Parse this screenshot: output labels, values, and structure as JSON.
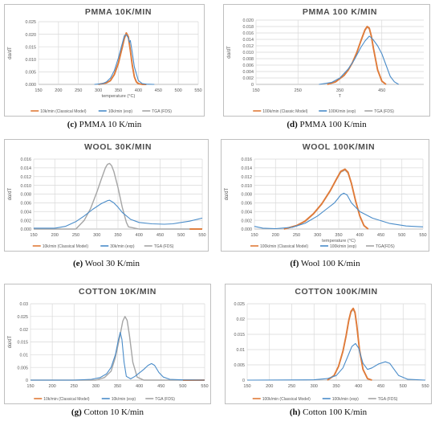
{
  "colors": {
    "model": "#e07b39",
    "exp": "#4a8cc9",
    "tga": "#a5a5a5",
    "grid": "#d9d9d9",
    "text": "#595959",
    "title": "#4d4d4d"
  },
  "chart_data": [
    {
      "id": "c",
      "type": "line",
      "title": "PMMA 10K/MIN",
      "xlabel": "temperature (°C)",
      "ylabel": "dα/dT",
      "xlim": [
        150,
        550
      ],
      "ylim": [
        0,
        0.025
      ],
      "xticks": [
        150,
        200,
        250,
        300,
        350,
        400,
        450,
        500,
        550
      ],
      "xticklabels": [
        "150",
        "200",
        "250",
        "300",
        "350",
        "400",
        "450",
        "500",
        "550"
      ],
      "yticks": [
        0,
        0.005,
        0.01,
        0.015,
        0.02,
        0.025
      ],
      "yticklabels": [
        "0.000",
        "0.005",
        "0.010",
        "0.015",
        "0.020",
        "0.025"
      ],
      "legend": "bottom",
      "caption": {
        "letter": "(c)",
        "text": " PMMA 10 K/min"
      },
      "series": [
        {
          "name": "10k/min (Classical Model)",
          "color": "model",
          "x": [
            300,
            320,
            330,
            340,
            350,
            360,
            365,
            370,
            375,
            380,
            385,
            390,
            395,
            400,
            410,
            420
          ],
          "y": [
            0,
            0.0006,
            0.0015,
            0.004,
            0.0085,
            0.015,
            0.0185,
            0.0205,
            0.019,
            0.0135,
            0.0075,
            0.003,
            0.001,
            0.0003,
            0,
            0
          ]
        },
        {
          "name": "10k/min (exp)",
          "color": "exp",
          "x": [
            290,
            310,
            320,
            330,
            340,
            350,
            360,
            365,
            370,
            375,
            378,
            380,
            385,
            390,
            400,
            410,
            420,
            440
          ],
          "y": [
            0,
            0.0003,
            0.001,
            0.0025,
            0.0055,
            0.0105,
            0.0165,
            0.0195,
            0.0198,
            0.0185,
            0.0168,
            0.0175,
            0.0125,
            0.007,
            0.0015,
            0.0003,
            0.0001,
            0
          ]
        },
        {
          "name": "TGA (FDS)",
          "color": "tga",
          "x": [
            300,
            320,
            330,
            340,
            350,
            360,
            365,
            370,
            375,
            380,
            385,
            390,
            395,
            400,
            410,
            420
          ],
          "y": [
            0,
            0.0005,
            0.0014,
            0.0038,
            0.0082,
            0.0148,
            0.0182,
            0.0202,
            0.0188,
            0.0135,
            0.0075,
            0.003,
            0.001,
            0.0003,
            0,
            0
          ]
        }
      ]
    },
    {
      "id": "d",
      "type": "line",
      "title": "PMMA 100 K/MIN",
      "xlabel": "T",
      "ylabel": "dα/dT",
      "xlim": [
        150,
        550
      ],
      "ylim": [
        0,
        0.02
      ],
      "xticks": [
        150,
        250,
        350,
        450
      ],
      "xticklabels": [
        "150",
        "250",
        "350",
        "450"
      ],
      "yticks": [
        0,
        0.002,
        0.004,
        0.006,
        0.008,
        0.01,
        0.012,
        0.014,
        0.016,
        0.018,
        0.02
      ],
      "yticklabels": [
        "0",
        "0.002",
        "0.004",
        "0.006",
        "0.008",
        "0.010",
        "0.012",
        "0.014",
        "0.016",
        "0.018",
        "0.020"
      ],
      "legend": "bottom",
      "caption": {
        "letter": "(d)",
        "text": " PMMA 100 K/min"
      },
      "series": [
        {
          "name": "100k/min (Classic Model)",
          "color": "model",
          "x": [
            320,
            340,
            360,
            370,
            380,
            390,
            400,
            410,
            415,
            420,
            425,
            430,
            440,
            450,
            460
          ],
          "y": [
            0,
            0.0008,
            0.0028,
            0.0045,
            0.0068,
            0.0098,
            0.0135,
            0.017,
            0.018,
            0.0175,
            0.015,
            0.0112,
            0.0045,
            0.001,
            0
          ]
        },
        {
          "name": "100K/min (exp)",
          "color": "exp",
          "x": [
            300,
            330,
            350,
            370,
            385,
            400,
            410,
            420,
            425,
            430,
            440,
            450,
            460,
            470,
            480,
            490
          ],
          "y": [
            0,
            0.0006,
            0.002,
            0.0048,
            0.0078,
            0.0115,
            0.0135,
            0.015,
            0.0145,
            0.0138,
            0.012,
            0.0095,
            0.006,
            0.0025,
            0.0008,
            0
          ]
        },
        {
          "name": "TGA (FDS)",
          "color": "tga",
          "x": [
            320,
            340,
            360,
            370,
            380,
            390,
            400,
            410,
            415,
            420,
            425,
            430,
            440,
            450,
            460
          ],
          "y": [
            0,
            0.0008,
            0.0027,
            0.0044,
            0.0067,
            0.0097,
            0.0134,
            0.0168,
            0.0178,
            0.0173,
            0.0149,
            0.0111,
            0.0045,
            0.001,
            0
          ]
        }
      ]
    },
    {
      "id": "e",
      "type": "line",
      "title": "WOOL 30K/MIN",
      "xlabel": "",
      "ylabel": "dα/dT",
      "xlim": [
        150,
        550
      ],
      "ylim": [
        0,
        0.016
      ],
      "xticks": [
        150,
        200,
        250,
        300,
        350,
        400,
        450,
        500,
        550
      ],
      "xticklabels": [
        "150",
        "200",
        "250",
        "300",
        "350",
        "400",
        "450",
        "500",
        "550"
      ],
      "yticks": [
        0,
        0.002,
        0.004,
        0.006,
        0.008,
        0.01,
        0.012,
        0.014,
        0.016
      ],
      "yticklabels": [
        "0.000",
        "0.002",
        "0.004",
        "0.006",
        "0.008",
        "0.010",
        "0.012",
        "0.014",
        "0.016"
      ],
      "legend": "bottom",
      "caption": {
        "letter": "(e)",
        "text": " Wool 30 K/min"
      },
      "series": [
        {
          "name": "10k/min (Classical Model)",
          "color": "model",
          "x": [
            520,
            550
          ],
          "y": [
            0,
            0
          ]
        },
        {
          "name": "30k/min (exp)",
          "color": "exp",
          "x": [
            150,
            200,
            225,
            250,
            270,
            290,
            310,
            325,
            330,
            340,
            350,
            360,
            380,
            400,
            430,
            460,
            480,
            500,
            520,
            550
          ],
          "y": [
            0.0002,
            0.0002,
            0.0006,
            0.0017,
            0.003,
            0.0045,
            0.0058,
            0.0065,
            0.0066,
            0.006,
            0.005,
            0.0038,
            0.0022,
            0.0015,
            0.0012,
            0.0011,
            0.0012,
            0.0015,
            0.0018,
            0.0025
          ]
        },
        {
          "name": "TGA (FDS)",
          "color": "tga",
          "x": [
            150,
            250,
            270,
            285,
            300,
            310,
            320,
            325,
            330,
            335,
            340,
            350,
            360,
            370,
            375,
            400,
            550
          ],
          "y": [
            0,
            0,
            0.002,
            0.0047,
            0.0085,
            0.0113,
            0.014,
            0.0148,
            0.015,
            0.0145,
            0.0132,
            0.0095,
            0.005,
            0.0015,
            0.0005,
            0,
            0
          ]
        }
      ]
    },
    {
      "id": "f",
      "type": "line",
      "title": "WOOL 100K/MIN",
      "xlabel": "temperature (°C)",
      "ylabel": "dα/dT",
      "xlim": [
        150,
        550
      ],
      "ylim": [
        0,
        0.016
      ],
      "xticks": [
        150,
        200,
        250,
        300,
        350,
        400,
        450,
        500,
        550
      ],
      "xticklabels": [
        "150",
        "200",
        "250",
        "300",
        "350",
        "400",
        "450",
        "500",
        "550"
      ],
      "yticks": [
        0,
        0.002,
        0.004,
        0.006,
        0.008,
        0.01,
        0.012,
        0.014,
        0.016
      ],
      "yticklabels": [
        "0.000",
        "0.002",
        "0.004",
        "0.006",
        "0.008",
        "0.010",
        "0.012",
        "0.014",
        "0.016"
      ],
      "legend": "bottom",
      "caption": {
        "letter": "(f)",
        "text": " Wool 100 K/min"
      },
      "series": [
        {
          "name": "100k/min (Classical Model)",
          "color": "model",
          "x": [
            220,
            250,
            270,
            290,
            310,
            330,
            345,
            355,
            365,
            372,
            380,
            390,
            400,
            410,
            420
          ],
          "y": [
            0,
            0.0008,
            0.0018,
            0.0035,
            0.0058,
            0.0088,
            0.0115,
            0.0132,
            0.0137,
            0.013,
            0.0105,
            0.0065,
            0.003,
            0.0008,
            0
          ]
        },
        {
          "name": "100k/min (exp)",
          "color": "exp",
          "x": [
            150,
            170,
            200,
            240,
            270,
            300,
            320,
            340,
            355,
            362,
            370,
            380,
            400,
            430,
            470,
            510,
            550
          ],
          "y": [
            0.0006,
            0.0002,
            0.0001,
            0.0004,
            0.0013,
            0.003,
            0.0045,
            0.006,
            0.0078,
            0.0082,
            0.0078,
            0.006,
            0.004,
            0.0025,
            0.0013,
            0.0007,
            0.0005
          ]
        },
        {
          "name": "TGA(FDS)",
          "color": "tga",
          "x": [
            220,
            250,
            270,
            290,
            310,
            330,
            345,
            355,
            365,
            372,
            380,
            390,
            400,
            410,
            420
          ],
          "y": [
            0,
            0.0007,
            0.0017,
            0.0034,
            0.0057,
            0.0087,
            0.0114,
            0.013,
            0.0135,
            0.0128,
            0.0104,
            0.0064,
            0.003,
            0.0008,
            0
          ]
        }
      ]
    },
    {
      "id": "g",
      "type": "line",
      "title": "COTTON 10K/MIN",
      "xlabel": "",
      "ylabel": "dα/dT",
      "xlim": [
        150,
        550
      ],
      "ylim": [
        0,
        0.03
      ],
      "xticks": [
        150,
        200,
        250,
        300,
        350,
        400,
        450,
        500,
        550
      ],
      "xticklabels": [
        "150",
        "200",
        "250",
        "300",
        "350",
        "400",
        "450",
        "500",
        "550"
      ],
      "yticks": [
        0,
        0.005,
        0.01,
        0.015,
        0.02,
        0.025,
        0.03
      ],
      "yticklabels": [
        "0",
        "0.005",
        "0.01",
        "0.015",
        "0.02",
        "0.025",
        "0.03"
      ],
      "legend": "bottom",
      "caption": {
        "letter": "(g)",
        "text": " Cotton 10 K/min"
      },
      "series": [
        {
          "name": "10k/min (Classical Model)",
          "color": "model",
          "x": [
            500,
            550
          ],
          "y": [
            0,
            0
          ]
        },
        {
          "name": "10k/min (exp)",
          "color": "exp",
          "x": [
            150,
            250,
            290,
            310,
            325,
            335,
            345,
            352,
            356,
            360,
            365,
            370,
            380,
            390,
            400,
            410,
            420,
            428,
            435,
            445,
            455,
            470,
            500,
            550
          ],
          "y": [
            0,
            0,
            0.0003,
            0.001,
            0.0025,
            0.005,
            0.01,
            0.016,
            0.0188,
            0.016,
            0.007,
            0.0015,
            0.0005,
            0.0015,
            0.0028,
            0.0042,
            0.0058,
            0.0065,
            0.0058,
            0.003,
            0.0012,
            0.0003,
            0.0001,
            0
          ]
        },
        {
          "name": "TGA (FDS)",
          "color": "tga",
          "x": [
            150,
            300,
            320,
            335,
            345,
            355,
            362,
            367,
            372,
            377,
            385,
            395,
            410,
            550
          ],
          "y": [
            0,
            0,
            0.001,
            0.0035,
            0.009,
            0.017,
            0.0232,
            0.025,
            0.0235,
            0.018,
            0.007,
            0.0012,
            0,
            0
          ]
        }
      ]
    },
    {
      "id": "h",
      "type": "line",
      "title": "COTTON 100K/MIN",
      "xlabel": "",
      "ylabel": "",
      "xlim": [
        150,
        550
      ],
      "ylim": [
        0,
        0.025
      ],
      "xticks": [
        150,
        200,
        250,
        300,
        350,
        400,
        450,
        500,
        550
      ],
      "xticklabels": [
        "150",
        "200",
        "250",
        "300",
        "350",
        "400",
        "450",
        "500",
        "550"
      ],
      "yticks": [
        0,
        0.005,
        0.01,
        0.015,
        0.02,
        0.025
      ],
      "yticklabels": [
        "0",
        "0.005",
        "0.01",
        "0.015",
        "0.02",
        "0.025"
      ],
      "legend": "bottom",
      "caption": {
        "letter": "(h)",
        "text": " Cotton 100 K/min"
      },
      "series": [
        {
          "name": "100k/min (Classical Model)",
          "color": "model",
          "x": [
            330,
            345,
            355,
            365,
            372,
            378,
            383,
            388,
            392,
            396,
            402,
            410,
            420,
            430
          ],
          "y": [
            0,
            0.0015,
            0.0045,
            0.0095,
            0.0145,
            0.0195,
            0.0225,
            0.0235,
            0.0222,
            0.018,
            0.01,
            0.0035,
            0.0005,
            0
          ]
        },
        {
          "name": "100k/min (exp)",
          "color": "exp",
          "x": [
            150,
            300,
            330,
            350,
            365,
            375,
            385,
            393,
            400,
            410,
            420,
            430,
            445,
            460,
            470,
            480,
            490,
            510,
            550
          ],
          "y": [
            0,
            0.0001,
            0.0005,
            0.0015,
            0.004,
            0.0075,
            0.011,
            0.012,
            0.0105,
            0.0055,
            0.0035,
            0.004,
            0.0053,
            0.006,
            0.0055,
            0.0035,
            0.0015,
            0.0003,
            0
          ]
        },
        {
          "name": "TGA (FDS)",
          "color": "tga",
          "x": [
            330,
            345,
            355,
            365,
            372,
            378,
            383,
            388,
            392,
            396,
            402,
            410,
            420,
            430
          ],
          "y": [
            0,
            0.0014,
            0.0044,
            0.0093,
            0.0143,
            0.0193,
            0.0222,
            0.0232,
            0.0219,
            0.0178,
            0.0099,
            0.0035,
            0.0005,
            0
          ]
        }
      ]
    }
  ]
}
